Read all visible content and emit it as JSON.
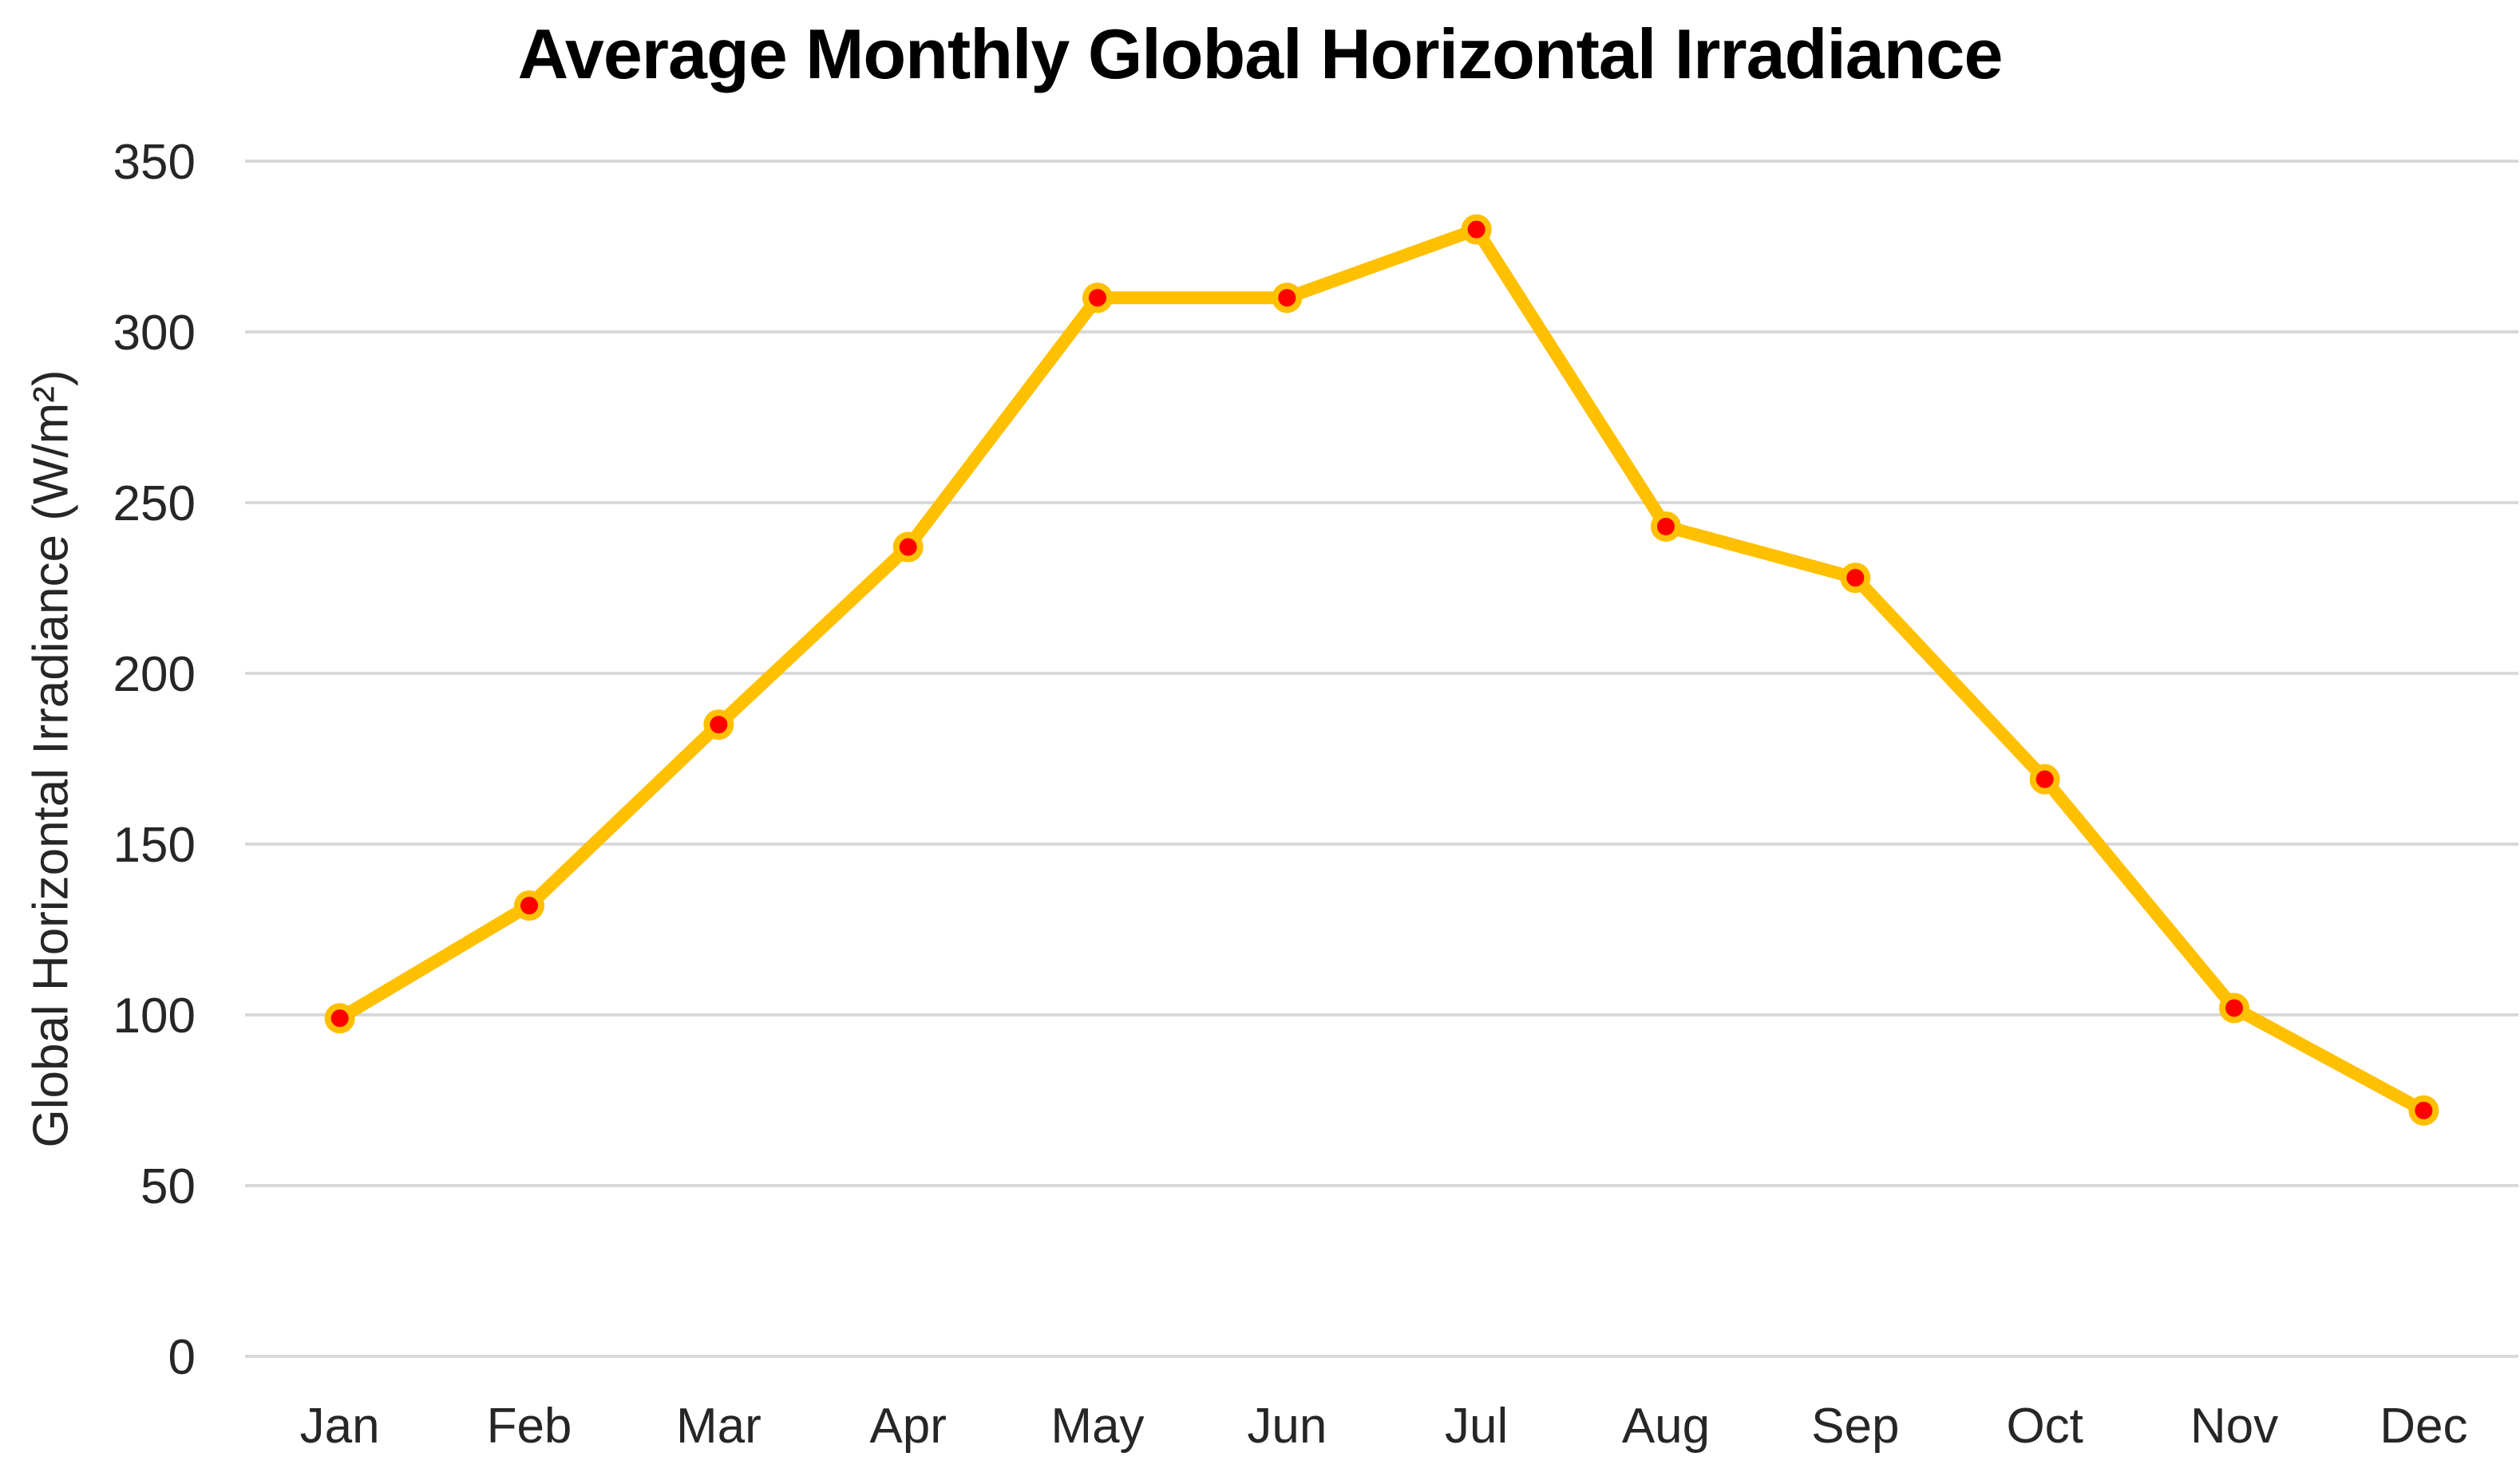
{
  "chart_data": {
    "type": "line",
    "title": "Average Monthly Global Horizontal Irradiance",
    "xlabel": "",
    "ylabel": "Global Horizontal Irradiance (W/m²)",
    "categories": [
      "Jan",
      "Feb",
      "Mar",
      "Apr",
      "May",
      "Jun",
      "Jul",
      "Aug",
      "Sep",
      "Oct",
      "Nov",
      "Dec"
    ],
    "series": [
      {
        "name": "Average Monthly Global Horizontal Irradiance",
        "values": [
          99,
          132,
          185,
          237,
          310,
          310,
          330,
          243,
          228,
          169,
          102,
          72
        ]
      }
    ],
    "ylim": [
      0,
      350
    ],
    "yticks": [
      0,
      50,
      100,
      150,
      200,
      250,
      300,
      350
    ],
    "grid": "horizontal-only",
    "legend_position": "none",
    "colors": {
      "line": "#FFC000",
      "marker_fill": "#FF0000",
      "marker_border": "#FFC000",
      "gridline": "#D9D9D9",
      "tick_text": "#262626",
      "title_text": "#000000",
      "background": "#FFFFFF"
    }
  }
}
